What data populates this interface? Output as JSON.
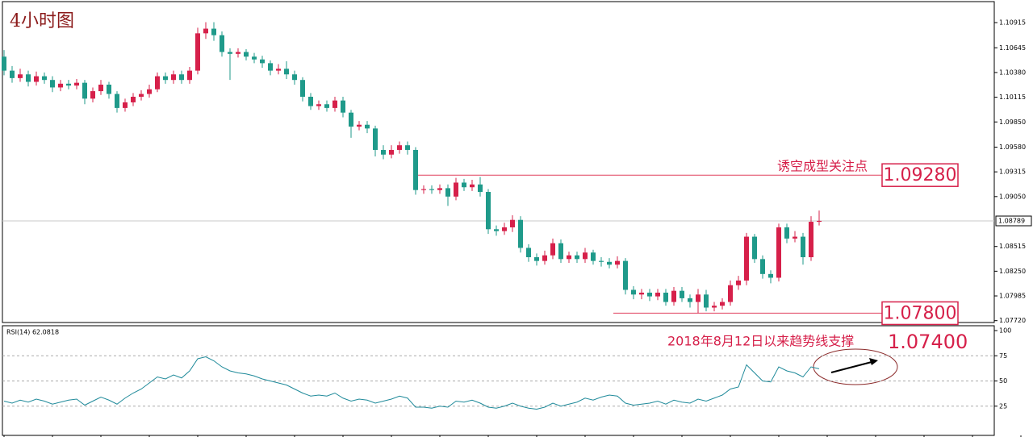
{
  "chart_data": {
    "type": "candlestick",
    "title": "4小时图",
    "up_color": "#d6204a",
    "down_color": "#1f9a8a",
    "open": [
      1.1055,
      1.104,
      1.1032,
      1.1036,
      1.1028,
      1.1034,
      1.103,
      1.1022,
      1.1026,
      1.1024,
      1.1027,
      1.101,
      1.1018,
      1.1025,
      1.1015,
      1.1,
      1.1006,
      1.1012,
      1.1015,
      1.102,
      1.1034,
      1.103,
      1.1036,
      1.103,
      1.104,
      1.108,
      1.1085,
      1.1078,
      1.106,
      1.1058,
      1.106,
      1.1055,
      1.1052,
      1.1048,
      1.104,
      1.1042,
      1.1036,
      1.103,
      1.1012,
      1.1002,
      1.1004,
      1.1,
      1.1008,
      1.0995,
      1.098,
      1.0982,
      1.0978,
      1.0955,
      1.095,
      1.0955,
      1.096,
      1.0955,
      1.0912,
      1.0913,
      1.0912,
      1.0914,
      1.0905,
      1.092,
      1.0915,
      1.0918,
      1.091,
      1.087,
      1.0868,
      1.0872,
      1.088,
      1.085,
      1.084,
      1.0836,
      1.0842,
      1.0855,
      1.0838,
      1.0842,
      1.0838,
      1.0845,
      1.0836,
      1.0835,
      1.0832,
      1.0836,
      1.0805,
      1.08,
      1.0802,
      1.0798,
      1.0802,
      1.0792,
      1.0804,
      1.0796,
      1.0792,
      1.08,
      1.0786,
      1.0788,
      1.0792,
      1.081,
      1.0815,
      1.0862,
      1.0838,
      1.0822,
      1.0818,
      1.0872,
      1.086,
      1.0862,
      1.084,
      1.0878
    ],
    "high": [
      1.1062,
      1.1045,
      1.1042,
      1.104,
      1.1039,
      1.1038,
      1.1034,
      1.103,
      1.103,
      1.1031,
      1.103,
      1.1022,
      1.103,
      1.1028,
      1.1018,
      1.101,
      1.1016,
      1.1019,
      1.1025,
      1.1038,
      1.1038,
      1.104,
      1.104,
      1.1044,
      1.1086,
      1.1092,
      1.1092,
      1.1082,
      1.1064,
      1.1064,
      1.1063,
      1.1059,
      1.1056,
      1.1051,
      1.1047,
      1.105,
      1.104,
      1.1033,
      1.1016,
      1.1008,
      1.1008,
      1.1012,
      1.1012,
      1.0998,
      1.0986,
      1.0986,
      1.0981,
      1.096,
      1.096,
      1.0964,
      1.0964,
      1.0958,
      1.0917,
      1.0917,
      1.0918,
      1.0918,
      1.0925,
      1.0924,
      1.0923,
      1.0926,
      1.0913,
      1.0874,
      1.0877,
      1.0885,
      1.0884,
      1.0854,
      1.0844,
      1.0847,
      1.086,
      1.0859,
      1.0846,
      1.0846,
      1.085,
      1.0848,
      1.084,
      1.0839,
      1.0841,
      1.0839,
      1.0809,
      1.0806,
      1.0806,
      1.0806,
      1.0806,
      1.0808,
      1.0808,
      1.08,
      1.0806,
      1.0805,
      1.0792,
      1.0796,
      1.0815,
      1.082,
      1.0866,
      1.0865,
      1.0842,
      1.0826,
      1.0876,
      1.0876,
      1.0868,
      1.0866,
      1.0884,
      1.089
    ],
    "low": [
      1.1035,
      1.1027,
      1.1028,
      1.1023,
      1.1024,
      1.1026,
      1.1017,
      1.1018,
      1.102,
      1.102,
      1.1004,
      1.1006,
      1.1014,
      1.101,
      1.0995,
      1.0996,
      1.1002,
      1.1008,
      1.1011,
      1.1017,
      1.1026,
      1.1026,
      1.1026,
      1.1026,
      1.1036,
      1.1074,
      1.1072,
      1.1055,
      1.103,
      1.1054,
      1.1051,
      1.1048,
      1.1043,
      1.1035,
      1.1036,
      1.1031,
      1.1025,
      1.1007,
      1.0998,
      1.0998,
      1.0996,
      1.0996,
      1.099,
      1.0968,
      1.0976,
      1.0973,
      1.0948,
      1.0945,
      1.0946,
      1.0951,
      1.095,
      1.0907,
      1.0908,
      1.0908,
      1.0908,
      1.0895,
      1.0901,
      1.0911,
      1.0911,
      1.0905,
      1.0865,
      1.0863,
      1.0864,
      1.0867,
      1.0845,
      1.0835,
      1.0831,
      1.0832,
      1.0838,
      1.0834,
      1.0834,
      1.0834,
      1.0834,
      1.0832,
      1.083,
      1.0828,
      1.0828,
      1.08,
      1.0795,
      1.0795,
      1.0793,
      1.0794,
      1.0788,
      1.0788,
      1.0792,
      1.0786,
      1.078,
      1.0782,
      1.0782,
      1.0784,
      1.0788,
      1.0805,
      1.081,
      1.0834,
      1.0817,
      1.0812,
      1.0814,
      1.0855,
      1.0856,
      1.0832,
      1.0836,
      1.0874
    ],
    "close": [
      1.104,
      1.1032,
      1.1036,
      1.1028,
      1.1034,
      1.103,
      1.1022,
      1.1026,
      1.1024,
      1.1027,
      1.101,
      1.1018,
      1.1025,
      1.1015,
      1.1,
      1.1006,
      1.1012,
      1.1015,
      1.102,
      1.1034,
      1.103,
      1.1036,
      1.103,
      1.104,
      1.108,
      1.1085,
      1.1078,
      1.106,
      1.1058,
      1.106,
      1.1055,
      1.1052,
      1.1048,
      1.104,
      1.1042,
      1.1036,
      1.103,
      1.1012,
      1.1002,
      1.1004,
      1.1,
      1.1008,
      1.0995,
      1.098,
      1.0982,
      1.0978,
      1.0955,
      1.095,
      1.0955,
      1.096,
      1.0955,
      1.0912,
      1.0913,
      1.0912,
      1.0914,
      1.0905,
      1.092,
      1.0915,
      1.0918,
      1.091,
      1.087,
      1.0868,
      1.0872,
      1.088,
      1.085,
      1.084,
      1.0836,
      1.0842,
      1.0855,
      1.0838,
      1.0842,
      1.0838,
      1.0845,
      1.0836,
      1.0835,
      1.0832,
      1.0836,
      1.0805,
      1.08,
      1.0802,
      1.0798,
      1.0802,
      1.0792,
      1.0804,
      1.0796,
      1.0792,
      1.08,
      1.0786,
      1.0788,
      1.0792,
      1.081,
      1.0815,
      1.0862,
      1.0838,
      1.0822,
      1.0818,
      1.0872,
      1.086,
      1.0862,
      1.084,
      1.0878,
      1.0879
    ],
    "ylim": [
      1.077,
      1.1114
    ],
    "yticks": [
      1.10915,
      1.10645,
      {
        "value": 1.1038,
        "label": "1.10380"
      },
      1.10115,
      {
        "value": 1.0985,
        "label": "1.09850"
      },
      {
        "value": 1.0958,
        "label": "1.09580"
      },
      1.09315,
      {
        "value": 1.0905,
        "label": "1.09050"
      },
      1.08515,
      {
        "value": 1.0825,
        "label": "1.08250"
      },
      1.07985,
      {
        "value": 1.0772,
        "label": "1.07720"
      }
    ],
    "current_price": 1.08789,
    "levels": [
      {
        "value": 1.0928,
        "label": "1.09280",
        "note": "诱空成型关注点"
      },
      {
        "value": 1.078,
        "label": "1.07800"
      }
    ],
    "trend_support": {
      "text": "2018年8月12日以来趋势线支撑",
      "price": "1.07400"
    },
    "rsi": {
      "label": "RSI(14) 62.0818",
      "color": "#1f8a9a",
      "values": [
        30,
        28,
        31,
        29,
        32,
        30,
        27,
        29,
        31,
        32,
        26,
        30,
        34,
        31,
        27,
        33,
        38,
        42,
        48,
        54,
        52,
        56,
        53,
        60,
        72,
        74,
        70,
        64,
        60,
        58,
        57,
        55,
        52,
        50,
        48,
        46,
        42,
        38,
        35,
        36,
        35,
        38,
        33,
        30,
        32,
        31,
        28,
        30,
        32,
        35,
        33,
        24,
        24,
        23,
        25,
        24,
        30,
        29,
        31,
        28,
        24,
        23,
        25,
        28,
        25,
        23,
        22,
        24,
        28,
        25,
        27,
        29,
        33,
        31,
        34,
        36,
        35,
        28,
        26,
        27,
        28,
        30,
        27,
        31,
        29,
        28,
        32,
        30,
        33,
        36,
        42,
        44,
        66,
        58,
        50,
        49,
        64,
        60,
        58,
        54,
        64,
        62.0818
      ],
      "ylim": [
        0,
        100
      ],
      "yticks": [
        100,
        75,
        50,
        25
      ]
    }
  }
}
